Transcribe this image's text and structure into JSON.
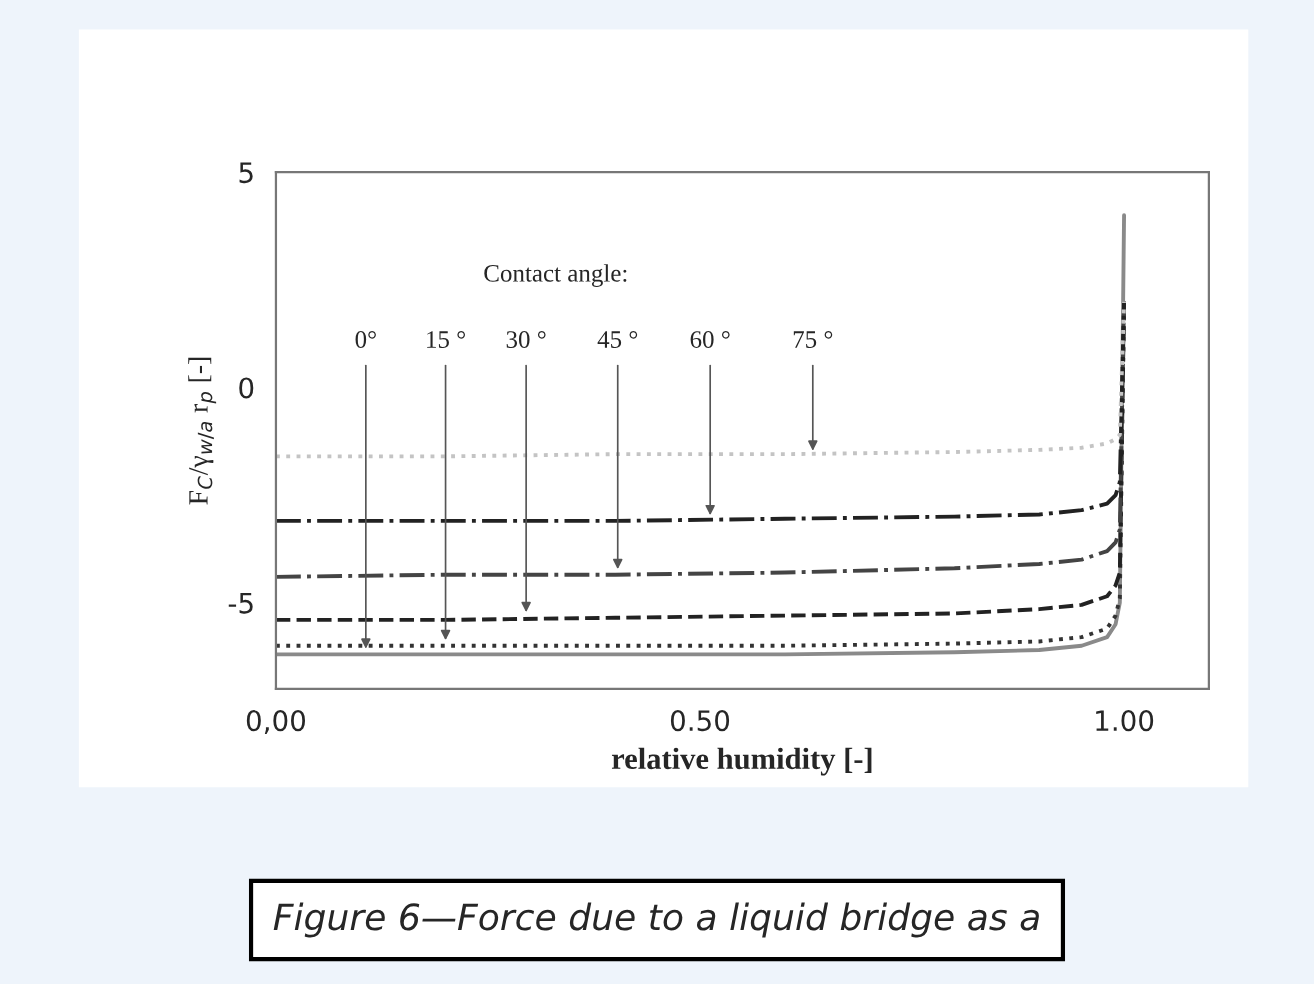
{
  "chart_data": {
    "type": "line",
    "xlabel": "relative humidity [-]",
    "ylabel": "F$_{C}$/γ$_{w/a}$ r$_{p}$ [-]",
    "xlim": [
      0,
      1.1
    ],
    "ylim": [
      -7,
      5
    ],
    "xticks": [
      {
        "value": 0,
        "label": "0,00"
      },
      {
        "value": 0.5,
        "label": "0.50"
      },
      {
        "value": 1.0,
        "label": "1.00"
      }
    ],
    "yticks": [
      5,
      0,
      {
        "value": -5,
        "label": "-5"
      }
    ],
    "grid": false,
    "legend": false,
    "marker": "none",
    "series": [
      {
        "color": "#8a8a8a",
        "line_style": "solid",
        "x": [
          0,
          0.2,
          0.4,
          0.6,
          0.8,
          0.9,
          0.95,
          0.98,
          0.99,
          0.995,
          1.0
        ],
        "values": [
          -6.2,
          -6.2,
          -6.2,
          -6.2,
          -6.15,
          -6.1,
          -6.0,
          -5.8,
          -5.5,
          -5.0,
          4.0
        ]
      },
      {
        "color": "#333333",
        "line_style": "dotted",
        "x": [
          0,
          0.2,
          0.4,
          0.6,
          0.8,
          0.9,
          0.95,
          0.98,
          0.99,
          0.995,
          1.0
        ],
        "values": [
          -6.0,
          -6.0,
          -6.0,
          -6.0,
          -5.95,
          -5.9,
          -5.8,
          -5.6,
          -5.3,
          -4.9,
          2.0
        ]
      },
      {
        "color": "#222222",
        "line_style": "dashed",
        "x": [
          0,
          0.2,
          0.4,
          0.6,
          0.8,
          0.9,
          0.95,
          0.98,
          0.99,
          0.995,
          1.0
        ],
        "values": [
          -5.4,
          -5.4,
          -5.35,
          -5.3,
          -5.25,
          -5.15,
          -5.05,
          -4.85,
          -4.6,
          -4.3,
          2.0
        ]
      },
      {
        "color": "#444444",
        "line_style": "dashdot",
        "x": [
          0,
          0.2,
          0.4,
          0.6,
          0.8,
          0.9,
          0.95,
          0.98,
          0.99,
          0.995,
          1.0
        ],
        "values": [
          -4.4,
          -4.35,
          -4.35,
          -4.3,
          -4.2,
          -4.1,
          -4.0,
          -3.8,
          -3.6,
          -3.3,
          2.0
        ]
      },
      {
        "color": "#222222",
        "line_style": "dashdot",
        "x": [
          0,
          0.2,
          0.4,
          0.6,
          0.8,
          0.9,
          0.95,
          0.98,
          0.99,
          0.995,
          1.0
        ],
        "values": [
          -3.1,
          -3.1,
          -3.1,
          -3.05,
          -3.0,
          -2.95,
          -2.85,
          -2.7,
          -2.5,
          -2.2,
          2.0
        ]
      },
      {
        "color": "#c4c4c4",
        "line_style": "dotted",
        "x": [
          0,
          0.2,
          0.4,
          0.6,
          0.8,
          0.9,
          0.95,
          0.98,
          0.99,
          0.995,
          1.0
        ],
        "values": [
          -1.6,
          -1.6,
          -1.55,
          -1.55,
          -1.5,
          -1.45,
          -1.4,
          -1.3,
          -1.2,
          -1.1,
          2.0
        ]
      }
    ],
    "annotations": [
      "Contact angle:",
      {
        "text": "0°",
        "x": 0.106,
        "y": -6.2
      },
      {
        "text": "15 °",
        "x": 0.2,
        "y": -6.0
      },
      {
        "text": "30 °",
        "x": 0.295,
        "y": -5.35
      },
      {
        "text": "45 °",
        "x": 0.403,
        "y": -4.35
      },
      {
        "text": "60 °",
        "x": 0.512,
        "y": -3.1
      },
      {
        "text": "75 °",
        "x": 0.633,
        "y": -1.6
      },
      "Figure 6—Force due to a liquid bridge as a"
    ]
  }
}
